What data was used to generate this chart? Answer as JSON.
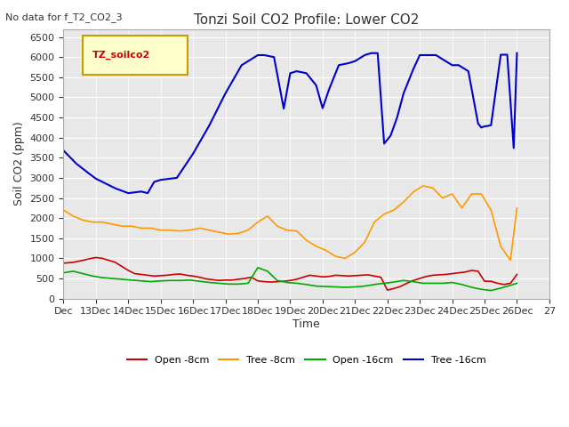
{
  "title": "Tonzi Soil CO2 Profile: Lower CO2",
  "no_data_text": "No data for f_T2_CO2_3",
  "ylabel": "Soil CO2 (ppm)",
  "xlabel": "Time",
  "ylim": [
    0,
    6700
  ],
  "yticks": [
    0,
    500,
    1000,
    1500,
    2000,
    2500,
    3000,
    3500,
    4000,
    4500,
    5000,
    5500,
    6000,
    6500
  ],
  "xtick_labels": [
    "Dec",
    "13Dec",
    "14Dec",
    "15Dec",
    "16Dec",
    "17Dec",
    "18Dec",
    "19Dec",
    "20Dec",
    "21Dec",
    "22Dec",
    "23Dec",
    "24Dec",
    "25Dec",
    "26Dec",
    "27"
  ],
  "legend_label": "TZ_soilco2",
  "series_colors": {
    "open_8cm": "#cc0000",
    "tree_8cm": "#ff9900",
    "open_16cm": "#00aa00",
    "tree_16cm": "#0000cc"
  },
  "series_labels": [
    "Open -8cm",
    "Tree -8cm",
    "Open -16cm",
    "Tree -16cm"
  ],
  "plot_bg_color": "#e8e8e8",
  "open_8cm_x": [
    0,
    0.3,
    0.6,
    0.8,
    1.0,
    1.2,
    1.4,
    1.6,
    1.8,
    2.0,
    2.2,
    2.4,
    2.6,
    2.8,
    3.0,
    3.2,
    3.4,
    3.6,
    3.8,
    4.0,
    4.2,
    4.4,
    4.6,
    4.8,
    5.0,
    5.2,
    5.4,
    5.6,
    5.8,
    6.0,
    6.2,
    6.4,
    6.6,
    6.8,
    7.0,
    7.2,
    7.4,
    7.6,
    7.8,
    8.0,
    8.2,
    8.4,
    8.6,
    8.8,
    9.0,
    9.2,
    9.4,
    9.6,
    9.8,
    10.0,
    10.2,
    10.4,
    10.6,
    10.8,
    11.0,
    11.2,
    11.4,
    11.6,
    11.8,
    12.0,
    12.2,
    12.4,
    12.6,
    12.8,
    13.0,
    13.2,
    13.4,
    13.6,
    13.8,
    14.0
  ],
  "open_8cm_y": [
    880,
    900,
    950,
    990,
    1020,
    1000,
    950,
    900,
    800,
    700,
    620,
    600,
    580,
    560,
    570,
    580,
    600,
    610,
    580,
    560,
    530,
    490,
    470,
    450,
    460,
    460,
    480,
    500,
    530,
    440,
    420,
    410,
    420,
    430,
    450,
    480,
    530,
    580,
    560,
    540,
    550,
    580,
    570,
    560,
    570,
    580,
    590,
    560,
    530,
    210,
    250,
    300,
    380,
    450,
    500,
    550,
    580,
    590,
    600,
    620,
    640,
    660,
    700,
    680,
    430,
    430,
    380,
    350,
    380,
    600
  ],
  "tree_8cm_x": [
    0,
    0.3,
    0.6,
    0.9,
    1.2,
    1.5,
    1.8,
    2.1,
    2.4,
    2.7,
    3.0,
    3.3,
    3.6,
    3.9,
    4.2,
    4.5,
    4.8,
    5.1,
    5.4,
    5.7,
    6.0,
    6.3,
    6.6,
    6.9,
    7.2,
    7.5,
    7.8,
    8.1,
    8.4,
    8.7,
    9.0,
    9.3,
    9.6,
    9.9,
    10.2,
    10.5,
    10.8,
    11.1,
    11.4,
    11.7,
    12.0,
    12.3,
    12.6,
    12.9,
    13.2,
    13.5,
    13.8,
    14.0
  ],
  "tree_8cm_y": [
    2200,
    2050,
    1950,
    1900,
    1900,
    1850,
    1800,
    1800,
    1750,
    1750,
    1700,
    1700,
    1680,
    1700,
    1750,
    1700,
    1650,
    1600,
    1620,
    1700,
    1900,
    2050,
    1800,
    1700,
    1680,
    1450,
    1300,
    1200,
    1050,
    1000,
    1150,
    1400,
    1900,
    2100,
    2200,
    2400,
    2650,
    2800,
    2750,
    2500,
    2600,
    2250,
    2600,
    2600,
    2200,
    1300,
    950,
    2250
  ],
  "open_16cm_x": [
    0,
    0.3,
    0.6,
    0.9,
    1.2,
    1.5,
    1.8,
    2.1,
    2.4,
    2.7,
    3.0,
    3.3,
    3.6,
    3.9,
    4.2,
    4.5,
    4.8,
    5.1,
    5.4,
    5.7,
    6.0,
    6.3,
    6.6,
    6.9,
    7.2,
    7.5,
    7.8,
    8.1,
    8.4,
    8.7,
    9.0,
    9.3,
    9.6,
    9.9,
    10.2,
    10.5,
    10.8,
    11.1,
    11.4,
    11.7,
    12.0,
    12.3,
    12.6,
    12.9,
    13.2,
    13.5,
    13.8,
    14.0
  ],
  "open_16cm_y": [
    640,
    680,
    620,
    560,
    520,
    500,
    480,
    460,
    440,
    420,
    440,
    450,
    450,
    460,
    430,
    400,
    380,
    360,
    360,
    380,
    770,
    680,
    450,
    400,
    380,
    350,
    310,
    300,
    290,
    280,
    290,
    310,
    350,
    380,
    410,
    450,
    420,
    380,
    380,
    380,
    400,
    350,
    280,
    230,
    200,
    260,
    330,
    380
  ],
  "tree_16cm_x": [
    0,
    0.4,
    0.8,
    1.0,
    1.2,
    1.4,
    1.6,
    1.8,
    2.0,
    2.2,
    2.4,
    2.6,
    2.8,
    3.0,
    3.5,
    4.0,
    4.5,
    5.0,
    5.5,
    6.0,
    6.2,
    6.5,
    6.8,
    7.0,
    7.2,
    7.5,
    7.8,
    8.0,
    8.2,
    8.5,
    8.8,
    9.0,
    9.3,
    9.5,
    9.7,
    9.9,
    10.1,
    10.3,
    10.5,
    10.8,
    11.0,
    11.2,
    11.5,
    11.8,
    12.0,
    12.2,
    12.5,
    12.8,
    12.9,
    13.0,
    13.1,
    13.2,
    13.5,
    13.7,
    13.9,
    14.0
  ],
  "tree_16cm_y": [
    3680,
    3350,
    3100,
    2980,
    2900,
    2820,
    2740,
    2680,
    2620,
    2640,
    2660,
    2620,
    2900,
    2950,
    3000,
    3600,
    4300,
    5100,
    5800,
    6050,
    6050,
    6000,
    4720,
    5600,
    5650,
    5600,
    5300,
    4730,
    5200,
    5800,
    5850,
    5900,
    6050,
    6100,
    6100,
    3850,
    4050,
    4500,
    5100,
    5700,
    6050,
    6050,
    6050,
    5900,
    5800,
    5800,
    5650,
    4350,
    4250,
    4280,
    4290,
    4310,
    6060,
    6060,
    3740,
    6100
  ]
}
